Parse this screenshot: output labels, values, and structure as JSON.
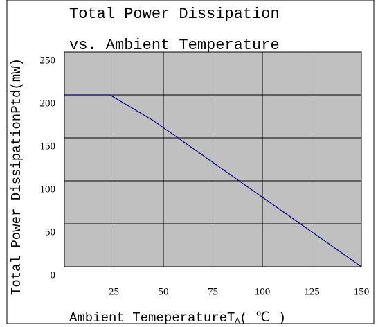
{
  "chart_data": {
    "type": "line",
    "title": [
      "Total Power Dissipation",
      "vs. Ambient Temperature"
    ],
    "y_label": "Total Power DissipationPtd(mW)",
    "x_label": [
      "Ambient TemeperatureT",
      "A",
      "( ℃ )"
    ],
    "series": [
      {
        "color": "#000080",
        "x": [
          0,
          23,
          45,
          150
        ],
        "values": [
          200,
          200,
          170,
          0
        ]
      }
    ],
    "xlim": [
      0,
      150
    ],
    "xticks": [
      25,
      50,
      75,
      100,
      125,
      150
    ],
    "ylim": [
      0,
      250
    ],
    "yticks": [
      0,
      50,
      100,
      150,
      200,
      250
    ],
    "grid": true,
    "background": "#c0c0c0"
  }
}
